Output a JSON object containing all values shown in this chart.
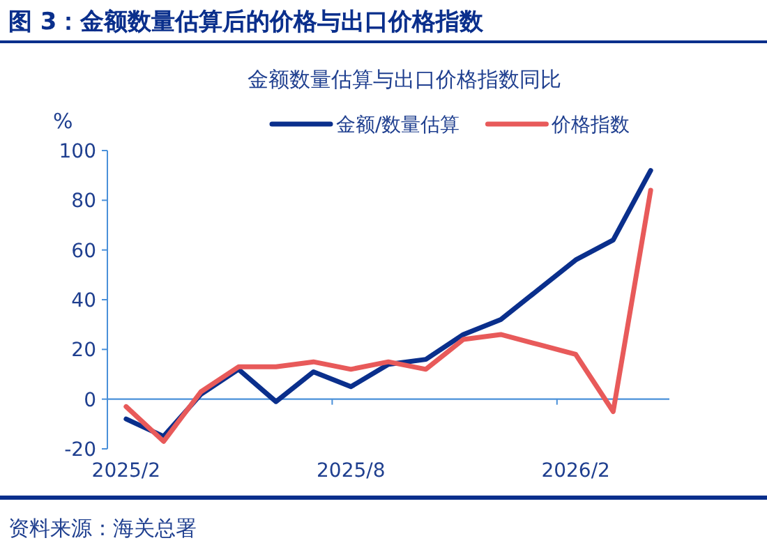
{
  "chart_data": {
    "type": "line",
    "title": "图 3：金额数量估算后的价格与出口价格指数",
    "subtitle": "金额数量估算与出口价格指数同比",
    "ylabel": "%",
    "categories": [
      "2025/2",
      null,
      null,
      null,
      null,
      null,
      "2025/8",
      null,
      null,
      null,
      null,
      null,
      "2026/2",
      null,
      null
    ],
    "series": [
      {
        "name": "金额/数量估算",
        "color": "#0a2f8c",
        "values": [
          -8,
          -15,
          2,
          12,
          -1,
          11,
          5,
          14,
          16,
          26,
          32,
          44,
          56,
          64,
          92
        ]
      },
      {
        "name": "价格指数",
        "color": "#e85a5a",
        "values": [
          -3,
          -17,
          3,
          13,
          13,
          15,
          12,
          15,
          12,
          24,
          26,
          22,
          18,
          -5,
          84
        ]
      }
    ],
    "ylim": [
      -20,
      100
    ],
    "yticks": [
      -20,
      0,
      20,
      40,
      60,
      80,
      100
    ],
    "grid": false,
    "legend": "top",
    "line_style": "solid",
    "marker": "none",
    "ref_lines": [
      {
        "axis": "y",
        "value": 0,
        "color": "#4a90d9"
      }
    ],
    "annotations": [
      "资料来源：海关总署"
    ]
  }
}
